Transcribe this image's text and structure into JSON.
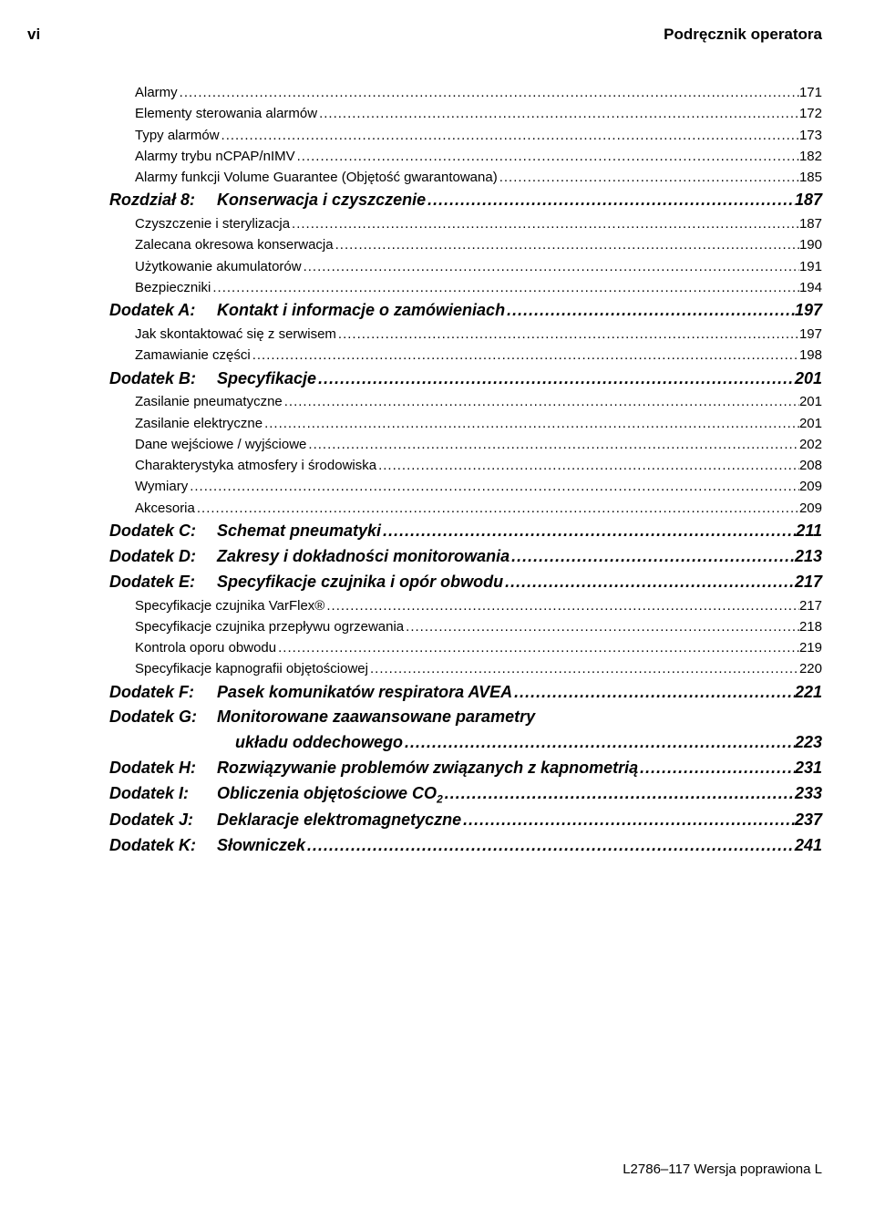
{
  "header": {
    "left": "vi",
    "right": "Podręcznik operatora"
  },
  "footer": "L2786–117 Wersja poprawiona L",
  "toc": [
    {
      "level": 2,
      "label": "Alarmy",
      "page": "171"
    },
    {
      "level": 2,
      "label": "Elementy sterowania alarmów",
      "page": "172"
    },
    {
      "level": 2,
      "label": "Typy alarmów",
      "page": "173"
    },
    {
      "level": 2,
      "label": "Alarmy trybu nCPAP/nIMV",
      "page": "182"
    },
    {
      "level": 2,
      "label": "Alarmy funkcji Volume Guarantee (Objętość gwarantowana)",
      "page": "185"
    },
    {
      "level": 1,
      "prefix": "Rozdział 8:",
      "label": "Konserwacja i czyszczenie",
      "page": "187"
    },
    {
      "level": 2,
      "label": "Czyszczenie i sterylizacja",
      "page": "187"
    },
    {
      "level": 2,
      "label": "Zalecana okresowa konserwacja",
      "page": "190"
    },
    {
      "level": 2,
      "label": "Użytkowanie akumulatorów",
      "page": "191"
    },
    {
      "level": 2,
      "label": "Bezpieczniki",
      "page": "194"
    },
    {
      "level": 1,
      "prefix": "Dodatek A:",
      "label": "Kontakt i informacje o zamówieniach",
      "page": "197"
    },
    {
      "level": 2,
      "label": "Jak skontaktować się z serwisem",
      "page": "197"
    },
    {
      "level": 2,
      "label": "Zamawianie części",
      "page": "198"
    },
    {
      "level": 1,
      "prefix": "Dodatek B:",
      "label": "Specyfikacje",
      "page": "201"
    },
    {
      "level": 2,
      "label": "Zasilanie pneumatyczne",
      "page": "201"
    },
    {
      "level": 2,
      "label": "Zasilanie elektryczne",
      "page": "201"
    },
    {
      "level": 2,
      "label": "Dane wejściowe / wyjściowe",
      "page": "202"
    },
    {
      "level": 2,
      "label": "Charakterystyka atmosfery i środowiska",
      "page": "208"
    },
    {
      "level": 2,
      "label": "Wymiary",
      "page": "209"
    },
    {
      "level": 2,
      "label": "Akcesoria",
      "page": "209"
    },
    {
      "level": 1,
      "prefix": "Dodatek C:",
      "label": "Schemat pneumatyki",
      "page": "211"
    },
    {
      "level": 1,
      "prefix": "Dodatek D:",
      "label": "Zakresy i dokładności monitorowania",
      "page": "213"
    },
    {
      "level": 1,
      "prefix": "Dodatek E:",
      "label": "Specyfikacje czujnika i opór obwodu",
      "page": "217"
    },
    {
      "level": 2,
      "label": "Specyfikacje czujnika VarFlex®",
      "page": "217"
    },
    {
      "level": 2,
      "label": "Specyfikacje czujnika przepływu ogrzewania",
      "page": "218"
    },
    {
      "level": 2,
      "label": "Kontrola oporu obwodu",
      "page": "219"
    },
    {
      "level": 2,
      "label": "Specyfikacje kapnografii objętościowej",
      "page": "220"
    },
    {
      "level": 1,
      "prefix": "Dodatek F:",
      "label": "Pasek komunikatów respiratora AVEA",
      "page": "221"
    },
    {
      "level": 1,
      "prefix": "Dodatek G:",
      "label": "Monitorowane zaawansowane parametry",
      "label2": "układu oddechowego",
      "page": "223"
    },
    {
      "level": 1,
      "prefix": "Dodatek H:",
      "label": "Rozwiązywanie problemów związanych z kapnometrią",
      "page": "231"
    },
    {
      "level": 1,
      "prefix": "Dodatek I:",
      "label": "Obliczenia objętościowe CO",
      "sub": "2",
      "page": "233"
    },
    {
      "level": 1,
      "prefix": "Dodatek J:",
      "label": "Deklaracje elektromagnetyczne",
      "page": "237"
    },
    {
      "level": 1,
      "prefix": "Dodatek K:",
      "label": "Słowniczek",
      "page": "241"
    }
  ]
}
